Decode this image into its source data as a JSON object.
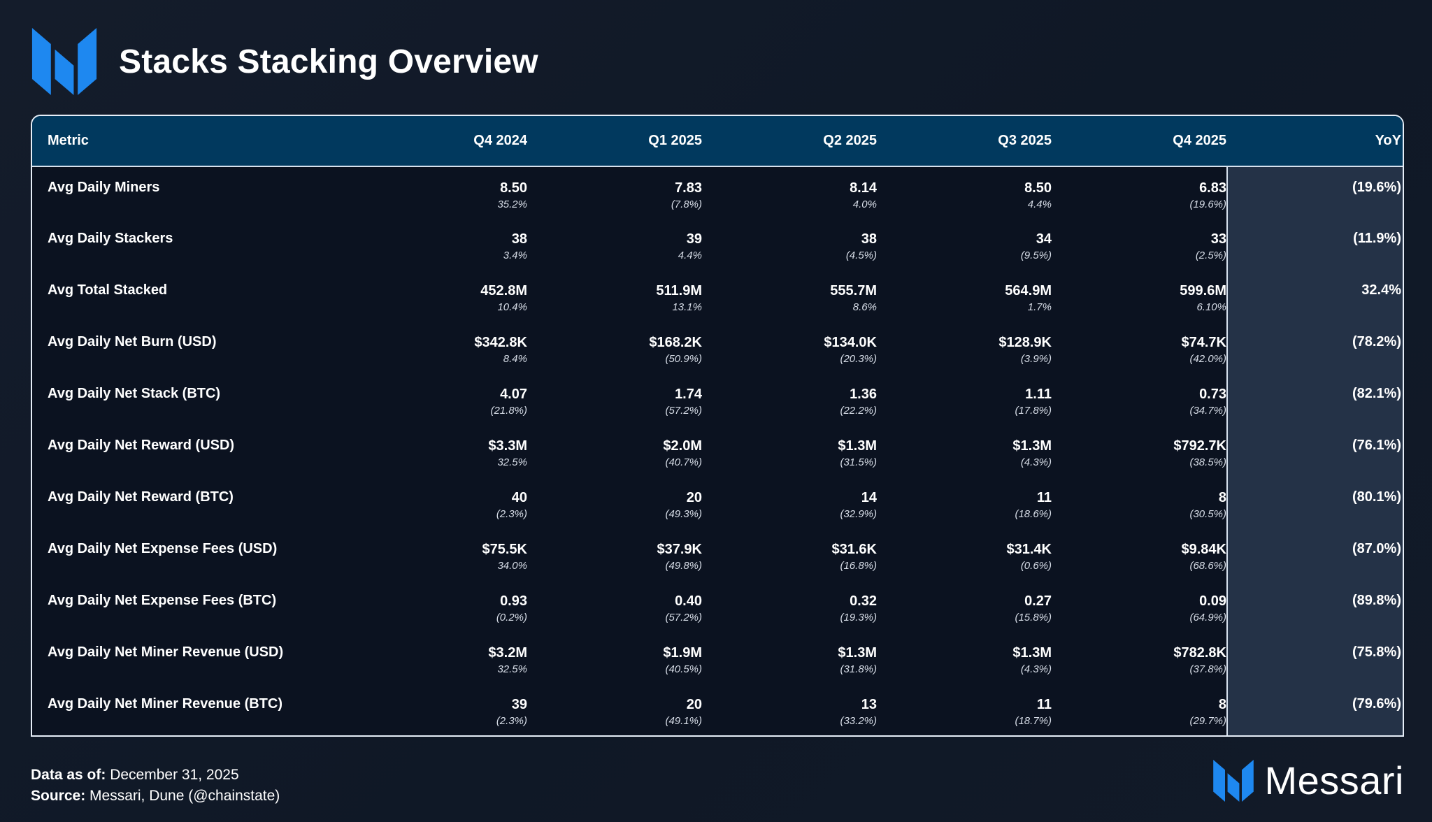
{
  "header": {
    "title": "Stacks Stacking Overview"
  },
  "colors": {
    "brand_blue": "#1e90ff",
    "header_row": "#01395e",
    "yoy_column": "#243247",
    "background": "#121a28"
  },
  "chart_data": {
    "type": "table",
    "columns": [
      "Metric",
      "Q4 2024",
      "Q1 2025",
      "Q2 2025",
      "Q3 2025",
      "Q4 2025",
      "YoY"
    ],
    "rows": [
      {
        "metric": "Avg Daily Miners",
        "values": [
          "8.50",
          "7.83",
          "8.14",
          "8.50",
          "6.83"
        ],
        "changes": [
          "35.2%",
          "(7.8%)",
          "4.0%",
          "4.4%",
          "(19.6%)"
        ],
        "yoy": "(19.6%)"
      },
      {
        "metric": "Avg Daily Stackers",
        "values": [
          "38",
          "39",
          "38",
          "34",
          "33"
        ],
        "changes": [
          "3.4%",
          "4.4%",
          "(4.5%)",
          "(9.5%)",
          "(2.5%)"
        ],
        "yoy": "(11.9%)"
      },
      {
        "metric": "Avg Total Stacked",
        "values": [
          "452.8M",
          "511.9M",
          "555.7M",
          "564.9M",
          "599.6M"
        ],
        "changes": [
          "10.4%",
          "13.1%",
          "8.6%",
          "1.7%",
          "6.10%"
        ],
        "yoy": "32.4%"
      },
      {
        "metric": "Avg Daily Net Burn (USD)",
        "values": [
          "$342.8K",
          "$168.2K",
          "$134.0K",
          "$128.9K",
          "$74.7K"
        ],
        "changes": [
          "8.4%",
          "(50.9%)",
          "(20.3%)",
          "(3.9%)",
          "(42.0%)"
        ],
        "yoy": "(78.2%)"
      },
      {
        "metric": "Avg Daily Net Stack (BTC)",
        "values": [
          "4.07",
          "1.74",
          "1.36",
          "1.11",
          "0.73"
        ],
        "changes": [
          "(21.8%)",
          "(57.2%)",
          "(22.2%)",
          "(17.8%)",
          "(34.7%)"
        ],
        "yoy": "(82.1%)"
      },
      {
        "metric": "Avg Daily Net Reward (USD)",
        "values": [
          "$3.3M",
          "$2.0M",
          "$1.3M",
          "$1.3M",
          "$792.7K"
        ],
        "changes": [
          "32.5%",
          "(40.7%)",
          "(31.5%)",
          "(4.3%)",
          "(38.5%)"
        ],
        "yoy": "(76.1%)"
      },
      {
        "metric": "Avg Daily Net Reward (BTC)",
        "values": [
          "40",
          "20",
          "14",
          "11",
          "8"
        ],
        "changes": [
          "(2.3%)",
          "(49.3%)",
          "(32.9%)",
          "(18.6%)",
          "(30.5%)"
        ],
        "yoy": "(80.1%)"
      },
      {
        "metric": "Avg Daily Net Expense Fees (USD)",
        "values": [
          "$75.5K",
          "$37.9K",
          "$31.6K",
          "$31.4K",
          "$9.84K"
        ],
        "changes": [
          "34.0%",
          "(49.8%)",
          "(16.8%)",
          "(0.6%)",
          "(68.6%)"
        ],
        "yoy": "(87.0%)"
      },
      {
        "metric": "Avg Daily Net Expense Fees (BTC)",
        "values": [
          "0.93",
          "0.40",
          "0.32",
          "0.27",
          "0.09"
        ],
        "changes": [
          "(0.2%)",
          "(57.2%)",
          "(19.3%)",
          "(15.8%)",
          "(64.9%)"
        ],
        "yoy": "(89.8%)"
      },
      {
        "metric": "Avg Daily Net Miner Revenue (USD)",
        "values": [
          "$3.2M",
          "$1.9M",
          "$1.3M",
          "$1.3M",
          "$782.8K"
        ],
        "changes": [
          "32.5%",
          "(40.5%)",
          "(31.8%)",
          "(4.3%)",
          "(37.8%)"
        ],
        "yoy": "(75.8%)"
      },
      {
        "metric": "Avg Daily Net Miner Revenue (BTC)",
        "values": [
          "39",
          "20",
          "13",
          "11",
          "8"
        ],
        "changes": [
          "(2.3%)",
          "(49.1%)",
          "(33.2%)",
          "(18.7%)",
          "(29.7%)"
        ],
        "yoy": "(79.6%)"
      }
    ]
  },
  "footer": {
    "data_as_of_label": "Data as of:",
    "data_as_of_value": "December 31, 2025",
    "source_label": "Source:",
    "source_value": "Messari, Dune (@chainstate)"
  },
  "brand": {
    "name": "Messari",
    "logo_icon": "messari-logo-icon"
  }
}
